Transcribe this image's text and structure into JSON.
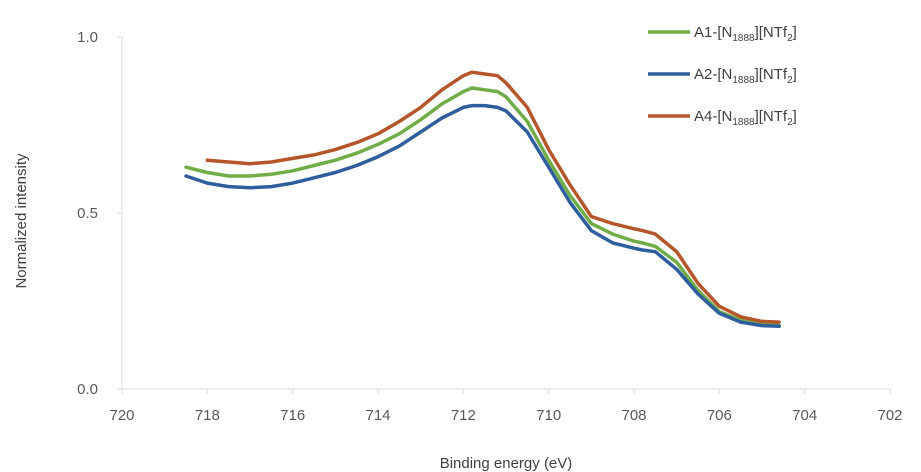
{
  "chart_data": {
    "type": "line",
    "title": "",
    "xlabel": "Binding energy (eV)",
    "ylabel": "Normalized intensity",
    "xlim": [
      720,
      702
    ],
    "ylim": [
      0.0,
      1.0
    ],
    "x_reversed": true,
    "x_ticks": [
      720,
      718,
      716,
      714,
      712,
      710,
      708,
      706,
      704,
      702
    ],
    "y_ticks": [
      0.0,
      0.5,
      1.0
    ],
    "x_tick_labels": [
      "720",
      "718",
      "716",
      "714",
      "712",
      "710",
      "708",
      "706",
      "704",
      "702"
    ],
    "y_tick_labels": [
      "0.0",
      "0.5",
      "1.0"
    ],
    "grid": false,
    "legend_position": "top-right",
    "series": [
      {
        "name": "A1-[N1888][NTf2]",
        "label": {
          "prefix": "A1-[N",
          "sub1": "1888",
          "mid": "][NTf",
          "sub2": "2",
          "suffix": "]"
        },
        "color": "#70ad47",
        "x": [
          718.5,
          718.0,
          717.5,
          717.0,
          716.5,
          716.0,
          715.5,
          715.0,
          714.5,
          714.0,
          713.5,
          713.0,
          712.5,
          712.0,
          711.8,
          711.5,
          711.2,
          711.0,
          710.5,
          710.0,
          709.5,
          709.0,
          708.5,
          708.0,
          707.8,
          707.5,
          707.0,
          706.5,
          706.0,
          705.5,
          705.0,
          704.6
        ],
        "y": [
          0.63,
          0.615,
          0.605,
          0.605,
          0.61,
          0.62,
          0.635,
          0.65,
          0.67,
          0.695,
          0.725,
          0.765,
          0.81,
          0.845,
          0.855,
          0.85,
          0.845,
          0.83,
          0.76,
          0.65,
          0.55,
          0.47,
          0.44,
          0.42,
          0.415,
          0.405,
          0.36,
          0.28,
          0.22,
          0.195,
          0.185,
          0.18
        ]
      },
      {
        "name": "A2-[N1888][NTf2]",
        "label": {
          "prefix": "A2-[N",
          "sub1": "1888",
          "mid": "][NTf",
          "sub2": "2",
          "suffix": "]"
        },
        "color": "#2e5e9e",
        "x": [
          718.5,
          718.0,
          717.5,
          717.0,
          716.5,
          716.0,
          715.5,
          715.0,
          714.5,
          714.0,
          713.5,
          713.0,
          712.5,
          712.0,
          711.8,
          711.5,
          711.2,
          711.0,
          710.5,
          710.0,
          709.5,
          709.0,
          708.5,
          708.0,
          707.8,
          707.5,
          707.0,
          706.5,
          706.0,
          705.5,
          705.0,
          704.6
        ],
        "y": [
          0.605,
          0.585,
          0.575,
          0.572,
          0.575,
          0.585,
          0.6,
          0.615,
          0.635,
          0.66,
          0.69,
          0.73,
          0.77,
          0.8,
          0.805,
          0.805,
          0.8,
          0.79,
          0.73,
          0.63,
          0.53,
          0.45,
          0.415,
          0.4,
          0.395,
          0.39,
          0.34,
          0.27,
          0.215,
          0.19,
          0.18,
          0.178
        ]
      },
      {
        "name": "A4-[N1888][NTf2]",
        "label": {
          "prefix": "A4-[N",
          "sub1": "1888",
          "mid": "][NTf",
          "sub2": "2",
          "suffix": "]"
        },
        "color": "#b5562a",
        "x": [
          718.0,
          717.5,
          717.0,
          716.5,
          716.0,
          715.5,
          715.0,
          714.5,
          714.0,
          713.5,
          713.0,
          712.5,
          712.0,
          711.8,
          711.5,
          711.2,
          711.0,
          710.5,
          710.0,
          709.5,
          709.0,
          708.5,
          708.0,
          707.8,
          707.5,
          707.0,
          706.5,
          706.0,
          705.5,
          705.0,
          704.6
        ],
        "y": [
          0.65,
          0.645,
          0.64,
          0.645,
          0.655,
          0.665,
          0.68,
          0.7,
          0.725,
          0.76,
          0.8,
          0.85,
          0.89,
          0.9,
          0.895,
          0.89,
          0.87,
          0.8,
          0.68,
          0.58,
          0.49,
          0.47,
          0.455,
          0.45,
          0.44,
          0.39,
          0.3,
          0.235,
          0.205,
          0.192,
          0.19
        ]
      }
    ]
  }
}
